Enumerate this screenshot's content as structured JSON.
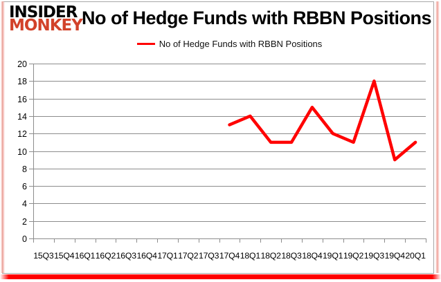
{
  "logo": {
    "line1": "INSIDER",
    "line2": "MONKEY"
  },
  "title": "No of Hedge Funds with RBBN Positions",
  "legend": {
    "label": "No of Hedge Funds with RBBN Positions",
    "line_color": "#ff0000"
  },
  "colors": {
    "line": "#ff0000",
    "grid": "#8c8c8c",
    "axis_text": "#000000",
    "logo_black": "#000000",
    "logo_red": "#d2422a",
    "card_border": "#a6a6a6",
    "edge_glow_pink": "#f0a39b",
    "bottom_bar_red": "#ff0000"
  },
  "chart_data": {
    "type": "line",
    "title": "No of Hedge Funds with RBBN Positions",
    "categories": [
      "15Q3",
      "15Q4",
      "16Q1",
      "16Q2",
      "16Q3",
      "16Q4",
      "17Q1",
      "17Q2",
      "17Q3",
      "17Q4",
      "18Q1",
      "18Q2",
      "18Q3",
      "18Q4",
      "19Q1",
      "19Q2",
      "19Q3",
      "19Q4",
      "20Q1"
    ],
    "yticks": [
      0,
      2,
      4,
      6,
      8,
      10,
      12,
      14,
      16,
      18,
      20
    ],
    "ylim": [
      0,
      20
    ],
    "ytick_step": 2,
    "grid": "horizontal-only",
    "legend_position": "top-center",
    "series": [
      {
        "name": "No of Hedge Funds with RBBN Positions",
        "color": "#ff0000",
        "x": [
          "17Q4",
          "18Q1",
          "18Q2",
          "18Q3",
          "18Q4",
          "19Q1",
          "19Q2",
          "19Q3",
          "19Q4",
          "20Q1"
        ],
        "values": [
          13,
          14,
          11,
          11,
          15,
          12,
          11,
          18,
          9,
          11
        ]
      }
    ]
  }
}
